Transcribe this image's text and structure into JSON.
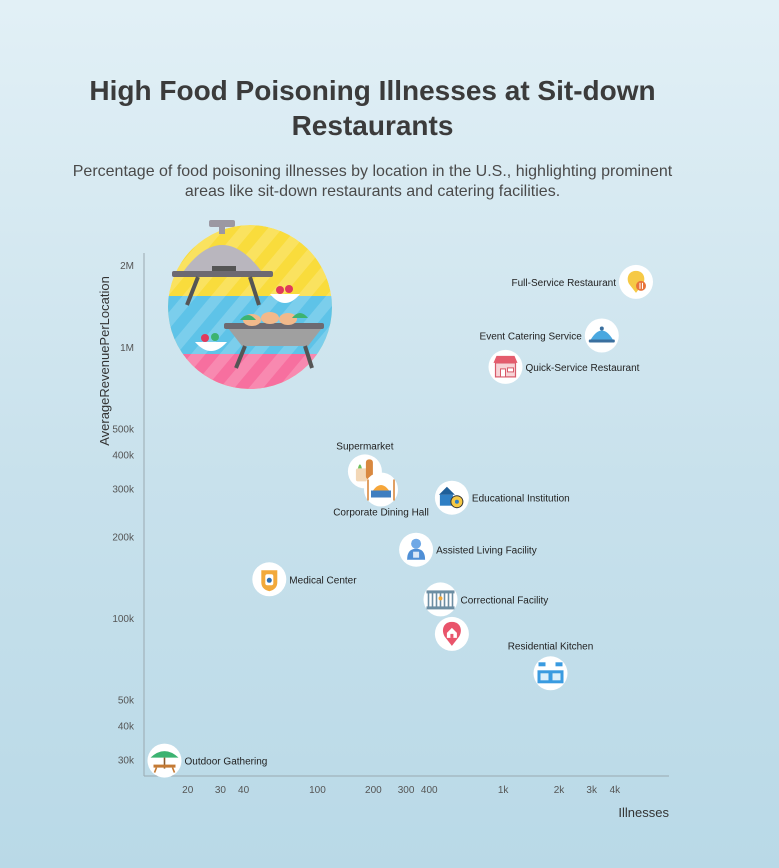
{
  "title": "High Food Poisoning Illnesses at Sit-down Restaurants",
  "subtitle": "Percentage of food poisoning illnesses by location in the U.S., highlighting prominent areas like sit-down restaurants and catering facilities.",
  "colors": {
    "axis": "#9aa9b0",
    "text": "#333333",
    "badge_bg": "#ffffff",
    "grill_circle": "#f9dc3c",
    "grill_pink": "#f76f9f",
    "grill_blue": "#5ec3e8"
  },
  "chart_data": {
    "type": "scatter",
    "title": "High Food Poisoning Illnesses at Sit-down Restaurants",
    "subtitle": "Percentage of food poisoning illnesses by location in the U.S., highlighting prominent areas like sit-down restaurants and catering facilities.",
    "xlabel": "Illnesses",
    "ylabel": "AverageRevenuePerLocation",
    "xscale": "log",
    "yscale": "log",
    "xlim": [
      13,
      7000
    ],
    "ylim": [
      27000,
      2200000
    ],
    "xticks": [
      {
        "value": 20,
        "label": "20"
      },
      {
        "value": 30,
        "label": "30"
      },
      {
        "value": 40,
        "label": "40"
      },
      {
        "value": 100,
        "label": "100"
      },
      {
        "value": 200,
        "label": "200"
      },
      {
        "value": 300,
        "label": "300"
      },
      {
        "value": 400,
        "label": "400"
      },
      {
        "value": 1000,
        "label": "1k"
      },
      {
        "value": 2000,
        "label": "2k"
      },
      {
        "value": 3000,
        "label": "3k"
      },
      {
        "value": 4000,
        "label": "4k"
      }
    ],
    "yticks": [
      {
        "value": 30000,
        "label": "30k"
      },
      {
        "value": 40000,
        "label": "40k"
      },
      {
        "value": 50000,
        "label": "50k"
      },
      {
        "value": 100000,
        "label": "100k"
      },
      {
        "value": 200000,
        "label": "200k"
      },
      {
        "value": 300000,
        "label": "300k"
      },
      {
        "value": 400000,
        "label": "400k"
      },
      {
        "value": 500000,
        "label": "500k"
      },
      {
        "value": 1000000,
        "label": "1M"
      },
      {
        "value": 2000000,
        "label": "2M"
      }
    ],
    "grid": false,
    "points": [
      {
        "name": "Full-Service Restaurant",
        "x": 5200,
        "y": 1750000,
        "icon": "restaurant-pin-icon",
        "label_side": "left",
        "label_dy": 0
      },
      {
        "name": "Event Catering Service",
        "x": 3400,
        "y": 1110000,
        "icon": "cloche-icon",
        "label_side": "left",
        "label_dy": 0
      },
      {
        "name": "Quick-Service Restaurant",
        "x": 1030,
        "y": 850000,
        "icon": "storefront-icon",
        "label_side": "right",
        "label_dy": 0
      },
      {
        "name": "Supermarket",
        "x": 180,
        "y": 350000,
        "icon": "groceries-icon",
        "label_side": "top",
        "label_dy": -22
      },
      {
        "name": "Corporate Dining Hall",
        "x": 220,
        "y": 300000,
        "icon": "buffet-tray-icon",
        "label_side": "bottom",
        "label_dy": 26
      },
      {
        "name": "Educational Institution",
        "x": 530,
        "y": 280000,
        "icon": "school-icon",
        "label_side": "right",
        "label_dy": 0
      },
      {
        "name": "Assisted Living Facility",
        "x": 340,
        "y": 180000,
        "icon": "caregiver-icon",
        "label_side": "right",
        "label_dy": 0
      },
      {
        "name": "Medical Center",
        "x": 55,
        "y": 140000,
        "icon": "medical-badge-icon",
        "label_side": "right",
        "label_dy": 0
      },
      {
        "name": "Correctional Facility",
        "x": 460,
        "y": 118000,
        "icon": "jail-icon",
        "label_side": "right",
        "label_dy": 0
      },
      {
        "name": "",
        "x": 530,
        "y": 88000,
        "icon": "home-pin-icon",
        "label_side": "right",
        "label_dy": 0
      },
      {
        "name": "Residential Kitchen",
        "x": 1800,
        "y": 63000,
        "icon": "kitchen-icon",
        "label_side": "top",
        "label_dy": -24
      },
      {
        "name": "Outdoor Gathering",
        "x": 15,
        "y": 30000,
        "icon": "picnic-table-icon",
        "label_side": "right",
        "label_dy": 0
      }
    ]
  }
}
